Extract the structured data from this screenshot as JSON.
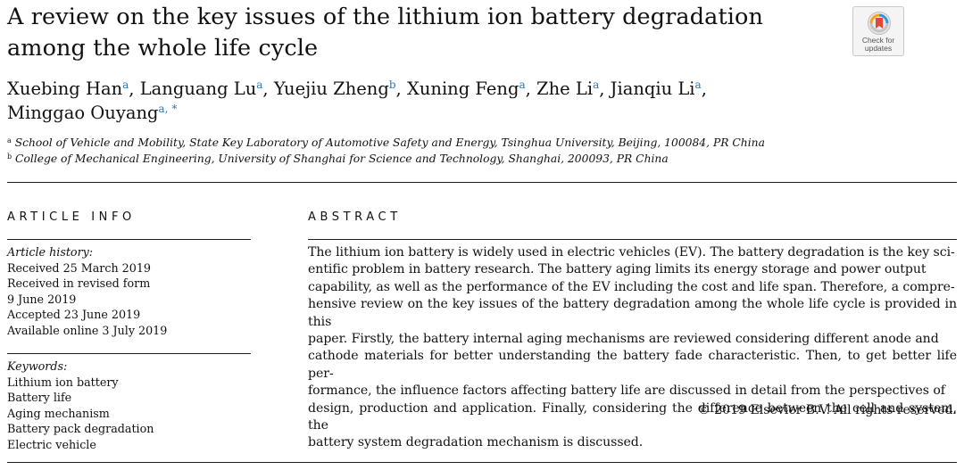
{
  "title": "A review on the key issues of the lithium ion battery degradation among the whole life cycle",
  "badge": {
    "line1": "Check for",
    "line2": "updates",
    "icon": "check-for-updates-icon"
  },
  "authors": [
    {
      "name": "Xuebing Han",
      "sup": "a",
      "sep": ", "
    },
    {
      "name": "Languang Lu",
      "sup": "a",
      "sep": ", "
    },
    {
      "name": "Yuejiu Zheng",
      "sup": "b",
      "sep": ", "
    },
    {
      "name": "Xuning Feng",
      "sup": "a",
      "sep": ", "
    },
    {
      "name": "Zhe Li",
      "sup": "a",
      "sep": ", "
    },
    {
      "name": "Jianqiu Li",
      "sup": "a",
      "sep": ","
    },
    {
      "name": "Minggao Ouyang",
      "sup": "a, *",
      "sep": ""
    }
  ],
  "affiliations": [
    {
      "mark": "a",
      "text": "School of Vehicle and Mobility, State Key Laboratory of Automotive Safety and Energy, Tsinghua University, Beijing, 100084, PR China"
    },
    {
      "mark": "b",
      "text": "College of Mechanical Engineering, University of Shanghai for Science and Technology, Shanghai, 200093, PR China"
    }
  ],
  "article_info": {
    "heading": "ARTICLE INFO",
    "history_label": "Article history:",
    "history": [
      "Received 25 March 2019",
      "Received in revised form",
      "9 June 2019",
      "Accepted 23 June 2019",
      "Available online 3 July 2019"
    ],
    "keywords_label": "Keywords:",
    "keywords": [
      "Lithium ion battery",
      "Battery life",
      "Aging mechanism",
      "Battery pack degradation",
      "Electric vehicle"
    ]
  },
  "abstract": {
    "heading": "ABSTRACT",
    "lines": [
      "The lithium ion battery is widely used in electric vehicles (EV). The battery degradation is the key sci-",
      "entific problem in battery research. The battery aging limits its energy storage and power output",
      "capability, as well as the performance of the EV including the cost and life span. Therefore, a compre-",
      "hensive review on the key issues of the battery degradation among the whole life cycle is provided in this",
      "paper. Firstly, the battery internal aging mechanisms are reviewed considering different anode and",
      "cathode materials for better understanding the battery fade characteristic. Then, to get better life per-",
      "formance, the influence factors affecting battery life are discussed in detail from the perspectives of",
      "design, production and application. Finally, considering the difference between the cell and system, the",
      "battery system degradation mechanism is discussed."
    ],
    "copyright": "© 2019 Elsevier B.V. All rights reserved."
  }
}
